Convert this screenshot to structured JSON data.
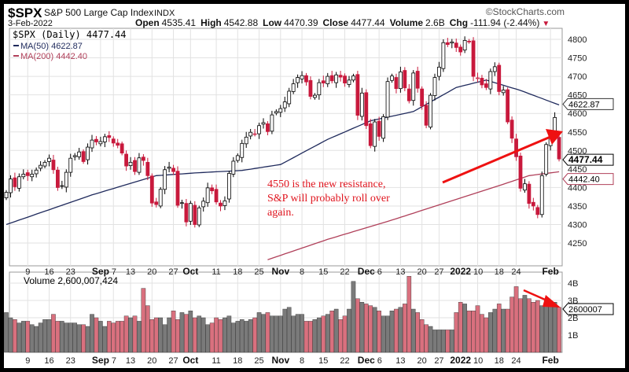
{
  "header": {
    "symbol": "$SPX",
    "name": "S&P 500 Large Cap Index",
    "exchange": "INDX",
    "watermark": "©StockCharts.com",
    "date": "3-Feb-2022",
    "open_label": "Open",
    "open": "4535.41",
    "high_label": "High",
    "high": "4542.88",
    "low_label": "Low",
    "low": "4470.39",
    "close_label": "Close",
    "close": "4477.44",
    "volume_label": "Volume",
    "volume": "2.6B",
    "chg_label": "Chg",
    "chg": "-111.94 (-2.44%)"
  },
  "legend": {
    "price": "$SPX (Daily) 4477.44",
    "ma50": "MA(50) 4622.87",
    "ma200": "MA(200) 4442.40",
    "volume": "Volume 2,600,007,424"
  },
  "tags": {
    "ma50": "4622.87",
    "close": "4477.44",
    "ma200": "4442.40",
    "volume": "2600007"
  },
  "annotation": [
    "4550 is the new resistance,",
    "S&P will probably roll over",
    "again."
  ],
  "colors": {
    "up": "#ffffff",
    "down": "#c8193c",
    "ma50": "#1f2a5c",
    "ma200": "#b0405a",
    "vol_up": "#7a7a7a",
    "vol_down": "#d9707e",
    "arrow": "#ee1111"
  },
  "chart_data": {
    "type": "candlestick",
    "title": "$SPX S&P 500 Large Cap Index",
    "ylim": [
      4200,
      4830
    ],
    "yticks": [
      4250,
      4300,
      4350,
      4400,
      4450,
      4500,
      4550,
      4600,
      4650,
      4700,
      4750,
      4800
    ],
    "vol_ticks": [
      {
        "v": 1,
        "label": "1B"
      },
      {
        "v": 2,
        "label": "2B"
      },
      {
        "v": 3,
        "label": "3B"
      },
      {
        "v": 4,
        "label": "4B"
      }
    ],
    "xticks": [
      {
        "i": 5,
        "label": "9"
      },
      {
        "i": 10,
        "label": "16"
      },
      {
        "i": 15,
        "label": "23"
      },
      {
        "i": 22,
        "label": "Sep",
        "bold": true
      },
      {
        "i": 25,
        "label": "7"
      },
      {
        "i": 29,
        "label": "13"
      },
      {
        "i": 34,
        "label": "20"
      },
      {
        "i": 39,
        "label": "27"
      },
      {
        "i": 43,
        "label": "Oct",
        "bold": true
      },
      {
        "i": 49,
        "label": "11"
      },
      {
        "i": 54,
        "label": "18"
      },
      {
        "i": 59,
        "label": "25"
      },
      {
        "i": 64,
        "label": "Nov",
        "bold": true
      },
      {
        "i": 69,
        "label": "8"
      },
      {
        "i": 74,
        "label": "15"
      },
      {
        "i": 79,
        "label": "22"
      },
      {
        "i": 84,
        "label": "Dec",
        "bold": true
      },
      {
        "i": 87,
        "label": "6"
      },
      {
        "i": 92,
        "label": "13"
      },
      {
        "i": 97,
        "label": "20"
      },
      {
        "i": 101,
        "label": "27"
      },
      {
        "i": 106,
        "label": "2022",
        "bold": true
      },
      {
        "i": 110,
        "label": "10"
      },
      {
        "i": 115,
        "label": "18"
      },
      {
        "i": 119,
        "label": "24"
      },
      {
        "i": 127,
        "label": "Feb",
        "bold": true
      }
    ],
    "close": [
      4387,
      4423,
      4402,
      4429,
      4436,
      4432,
      4436,
      4447,
      4460,
      4468,
      4479,
      4448,
      4400,
      4405,
      4441,
      4479,
      4486,
      4496,
      4470,
      4509,
      4528,
      4523,
      4524,
      4537,
      4535,
      4520,
      4514,
      4493,
      4458,
      4468,
      4443,
      4480,
      4473,
      4432,
      4358,
      4354,
      4395,
      4448,
      4455,
      4443,
      4352,
      4359,
      4307,
      4357,
      4300,
      4345,
      4363,
      4399,
      4391,
      4361,
      4350,
      4364,
      4438,
      4471,
      4486,
      4519,
      4536,
      4549,
      4545,
      4567,
      4575,
      4551,
      4596,
      4605,
      4613,
      4631,
      4660,
      4680,
      4697,
      4702,
      4685,
      4646,
      4649,
      4683,
      4682,
      4700,
      4688,
      4704,
      4698,
      4682,
      4690,
      4701,
      4595,
      4655,
      4567,
      4513,
      4577,
      4538,
      4591,
      4686,
      4701,
      4667,
      4712,
      4669,
      4634,
      4709,
      4668,
      4620,
      4568,
      4649,
      4697,
      4725,
      4791,
      4786,
      4793,
      4778,
      4766,
      4797,
      4794,
      4700,
      4696,
      4677,
      4670,
      4713,
      4726,
      4659,
      4663,
      4577,
      4533,
      4483,
      4398,
      4410,
      4357,
      4350,
      4327,
      4432,
      4516,
      4546,
      4589,
      4477
    ],
    "last_open": 4535.41,
    "last_high": 4542.88,
    "last_low": 4470.39,
    "ma50": [
      [
        0,
        4300
      ],
      [
        20,
        4380
      ],
      [
        35,
        4432
      ],
      [
        45,
        4440
      ],
      [
        55,
        4446
      ],
      [
        64,
        4462
      ],
      [
        75,
        4530
      ],
      [
        85,
        4580
      ],
      [
        95,
        4605
      ],
      [
        105,
        4670
      ],
      [
        112,
        4690
      ],
      [
        120,
        4662
      ],
      [
        129,
        4622.87
      ]
    ],
    "ma200": [
      [
        61,
        4205
      ],
      [
        75,
        4260
      ],
      [
        90,
        4312
      ],
      [
        105,
        4368
      ],
      [
        115,
        4405
      ],
      [
        122,
        4432
      ],
      [
        129,
        4442.4
      ]
    ],
    "volume_billions": [
      2.3,
      2.0,
      1.9,
      1.7,
      1.8,
      1.8,
      1.6,
      1.5,
      1.7,
      1.9,
      1.9,
      2.2,
      1.8,
      1.8,
      1.7,
      1.7,
      1.7,
      1.6,
      1.6,
      1.5,
      2.2,
      2.0,
      1.8,
      1.5,
      1.8,
      1.7,
      1.8,
      1.8,
      2.1,
      2.0,
      2.1,
      1.8,
      3.7,
      2.7,
      1.9,
      2.0,
      2.0,
      1.6,
      2.0,
      2.4,
      1.9,
      2.3,
      2.2,
      2.4,
      2.0,
      2.1,
      2.0,
      1.6,
      1.7,
      2.0,
      1.9,
      2.0,
      2.1,
      1.7,
      1.8,
      1.9,
      1.8,
      1.9,
      2.0,
      2.3,
      2.2,
      2.3,
      2.1,
      2.1,
      2.1,
      2.5,
      2.6,
      2.1,
      2.2,
      2.2,
      1.8,
      1.8,
      1.9,
      2.0,
      2.1,
      2.2,
      2.4,
      2.5,
      1.9,
      2.1,
      2.5,
      4.1,
      3.1,
      2.9,
      2.8,
      2.7,
      2.6,
      2.4,
      2.1,
      2.1,
      2.4,
      2.5,
      2.6,
      2.8,
      4.4,
      2.5,
      2.3,
      1.9,
      1.6,
      1.5,
      1.3,
      1.3,
      1.3,
      1.3,
      1.3,
      2.3,
      2.9,
      2.8,
      2.4,
      2.4,
      2.7,
      2.2,
      2.0,
      2.3,
      2.5,
      2.8,
      2.5,
      2.5,
      3.2,
      3.8,
      3.1,
      3.3,
      3.1,
      2.9,
      3.0,
      2.7,
      2.9,
      2.8,
      2.9,
      2.6
    ]
  }
}
